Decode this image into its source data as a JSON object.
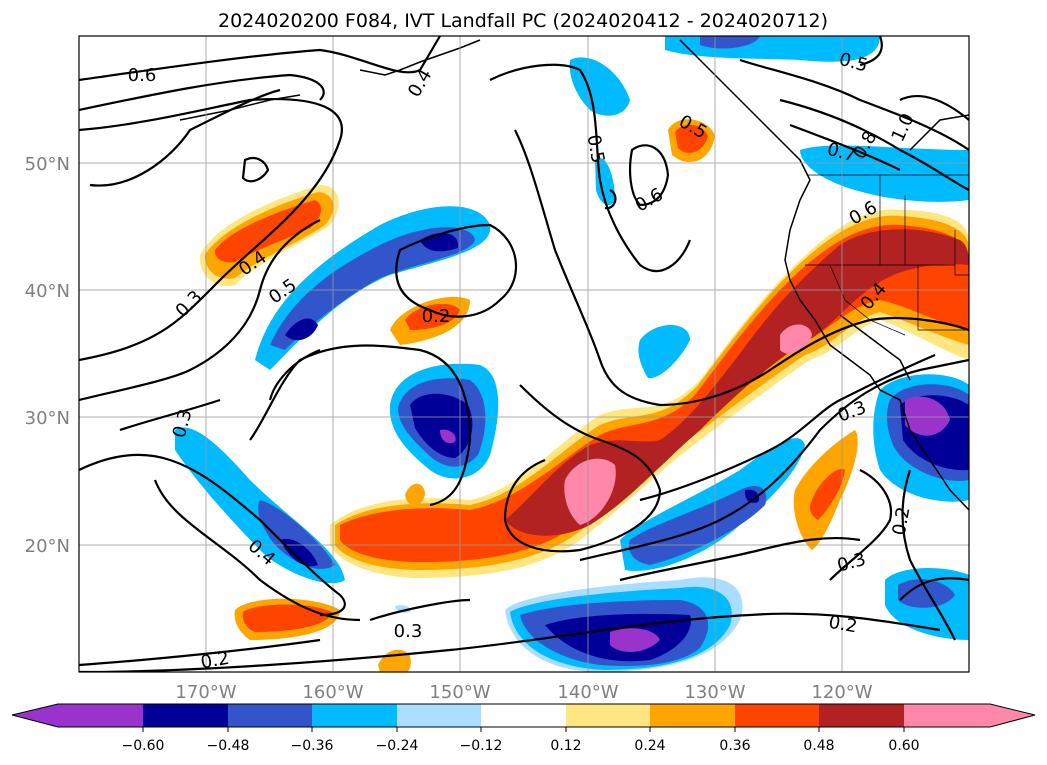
{
  "title": "2024020200 F084, IVT Landfall PC (2024020412 - 2024020712)",
  "axes": {
    "lat_labels": [
      "50°N",
      "40°N",
      "30°N",
      "20°N"
    ],
    "lon_labels": [
      "170°W",
      "160°W",
      "150°W",
      "140°W",
      "130°W",
      "120°W"
    ]
  },
  "colorbar": {
    "ticks": [
      "−0.60",
      "−0.48",
      "−0.36",
      "−0.24",
      "−0.12",
      "0.12",
      "0.24",
      "0.36",
      "0.48",
      "0.60"
    ],
    "colors": [
      "#9933cc",
      "#000099",
      "#3355cc",
      "#00bbff",
      "#aaddff",
      "#ffffff",
      "#ffe680",
      "#ffa500",
      "#ff4400",
      "#b22222",
      "#ff88aa"
    ]
  },
  "contour_labels": [
    "0.6",
    "0.4",
    "0.5",
    "0.5",
    "0.6",
    "0.5",
    "0.7",
    "0.8",
    "1.0",
    "0.6",
    "0.4",
    "0.5",
    "0.3",
    "0.2",
    "0.4",
    "0.3",
    "0.4",
    "0.3",
    "0.2",
    "0.3",
    "0.2",
    "0.2",
    "0.3"
  ]
}
